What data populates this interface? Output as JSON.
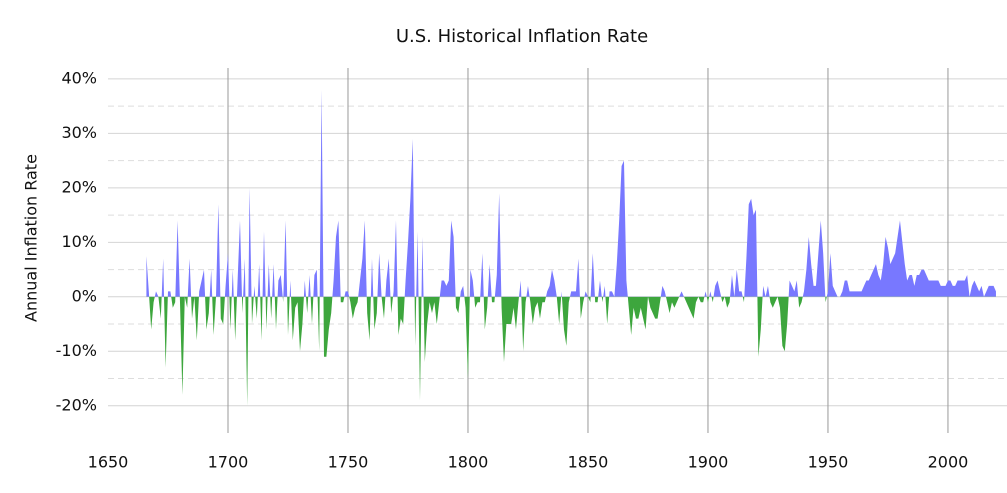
{
  "chart_data": {
    "type": "area",
    "title": "U.S. Historical Inflation Rate",
    "y_label": "Annual Inflation Rate",
    "positive_color": "#7878ff",
    "negative_color": "#3da63d",
    "xlim": [
      1650,
      2024.6
    ],
    "xticks": [
      1650,
      1700,
      1750,
      1800,
      1850,
      1900,
      1950,
      2000
    ],
    "ylim": [
      -25,
      42
    ],
    "yticks": [
      {
        "value": -20,
        "label": "-20%"
      },
      {
        "value": -10,
        "label": "-10%"
      },
      {
        "value": 0,
        "label": "0%"
      },
      {
        "value": 10,
        "label": "10%"
      },
      {
        "value": 20,
        "label": "20%"
      },
      {
        "value": 30,
        "label": "30%"
      },
      {
        "value": 40,
        "label": "40%"
      }
    ],
    "yminorticks": [
      -15,
      -5,
      5,
      15,
      25,
      35
    ],
    "grid": true,
    "x_start": 1666,
    "values": [
      7.5,
      1,
      -6,
      -1,
      1,
      0,
      -4,
      7,
      -13,
      1,
      1,
      -2,
      -1,
      14,
      -1,
      -18,
      0,
      -2,
      7,
      -4,
      0,
      -8,
      1,
      3,
      5,
      -6,
      -3,
      5,
      -7,
      0,
      17,
      -4,
      -5,
      2,
      8,
      -6,
      5,
      -8,
      3,
      14,
      -3,
      7,
      -20,
      20,
      -5,
      2,
      -4,
      6,
      -8,
      12,
      -6,
      6,
      -4,
      6,
      -6,
      3,
      4,
      -1,
      14,
      -7,
      3,
      -8,
      -2,
      -1,
      -10,
      -5,
      3,
      -3,
      4,
      -5,
      4,
      5,
      -10,
      38,
      -11,
      -11,
      -6,
      -3,
      3,
      11,
      14,
      -1,
      -1,
      1,
      1,
      -1,
      -4,
      -2,
      -1,
      3,
      7,
      14,
      -3,
      -8,
      7,
      -6,
      -3,
      8,
      0,
      -4,
      3,
      7,
      -3,
      1,
      14,
      -7,
      -4,
      -5,
      3,
      10,
      18,
      29,
      -9,
      12,
      -19,
      11,
      -12,
      -5,
      -1,
      -3,
      -1,
      -5,
      -1,
      3,
      3,
      2,
      3,
      14,
      11,
      -2,
      -3,
      1,
      2,
      -2,
      -15,
      5,
      3,
      -2,
      -1,
      -1,
      8,
      -6,
      -2,
      6,
      -1,
      -1,
      4,
      19,
      -2,
      -12,
      -5,
      -5,
      -5,
      -2,
      -6,
      -1,
      3,
      -10,
      -1,
      2,
      -1,
      -5,
      -2,
      -1,
      -4,
      -1,
      -1,
      1,
      2,
      5,
      3,
      0,
      -5,
      1,
      -6,
      -9,
      -1,
      1,
      1,
      1,
      7,
      -4,
      -1,
      1,
      0,
      -1,
      8,
      -1,
      -1,
      3,
      -1,
      2,
      -5,
      1,
      1,
      0,
      6,
      14,
      24,
      25,
      3,
      -2,
      -7,
      -2,
      -4,
      -4,
      -2,
      -4,
      -6,
      0,
      -2,
      -3,
      -4,
      -4,
      -1,
      2,
      1,
      -1,
      -3,
      -1,
      -2,
      -1,
      0,
      1,
      0,
      -1,
      -2,
      -3,
      -4,
      -1,
      0,
      -1,
      -1,
      1,
      -1,
      1,
      -1,
      2,
      3,
      1,
      -1,
      0,
      -2,
      -1,
      4,
      0,
      5,
      1,
      1,
      -1,
      7,
      17,
      18,
      15,
      16,
      -11,
      -6,
      2,
      0,
      2,
      -1,
      -2,
      -1,
      0,
      -2,
      -9,
      -10,
      -5,
      3,
      2,
      1,
      3,
      -2,
      -1,
      1,
      5,
      11,
      6,
      2,
      2,
      8,
      14,
      8,
      -1,
      1,
      8,
      2,
      1,
      0,
      0,
      1,
      3,
      3,
      1,
      1,
      1,
      1,
      1,
      1,
      2,
      3,
      3,
      4,
      5,
      6,
      4,
      3,
      6,
      11,
      9,
      6,
      7,
      8,
      11,
      14,
      10,
      6,
      3,
      4,
      4,
      2,
      4,
      4,
      5,
      5,
      4,
      3,
      3,
      3,
      3,
      3,
      2,
      2,
      2,
      3,
      3,
      2,
      2,
      3,
      3,
      3,
      3,
      4,
      0,
      2,
      3,
      2,
      1,
      2,
      0,
      1,
      2,
      2,
      2,
      1
    ]
  }
}
